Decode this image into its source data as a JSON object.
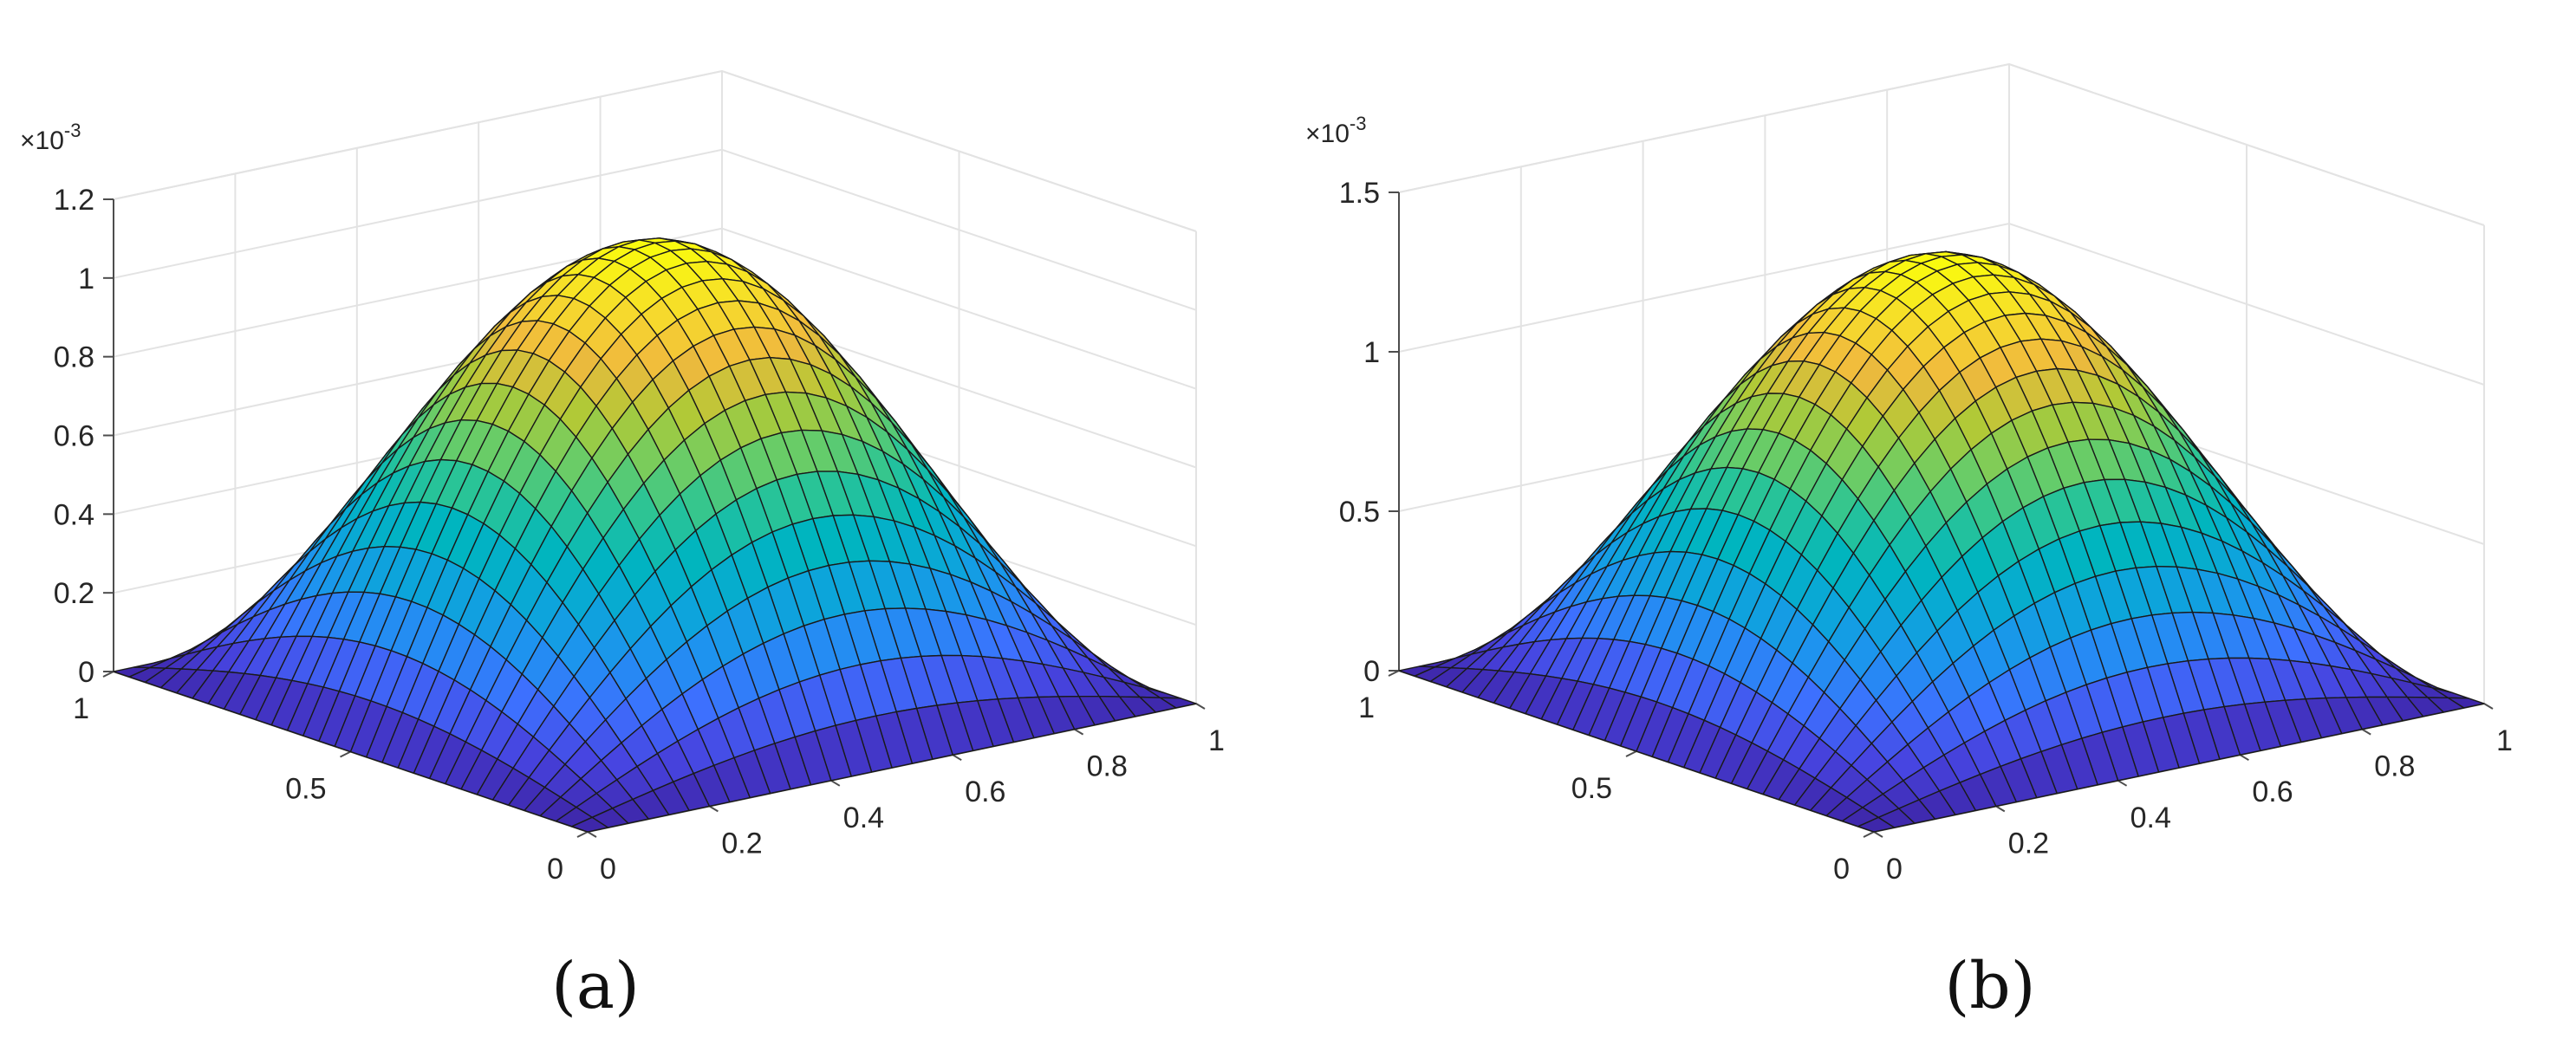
{
  "chart_data": [
    {
      "type": "surface",
      "panel_label": "(a)",
      "title": "",
      "xlabel": "",
      "ylabel": "",
      "zlabel": "",
      "xlim": [
        0,
        1
      ],
      "ylim": [
        0,
        1
      ],
      "zlim": [
        0,
        0.0012
      ],
      "x_ticks": [
        "0",
        "0.2",
        "0.4",
        "0.6",
        "0.8",
        "1"
      ],
      "y_ticks": [
        "0",
        "0.5",
        "1"
      ],
      "z_ticks": [
        "0",
        "0.2",
        "0.4",
        "0.6",
        "0.8",
        "1",
        "1.2"
      ],
      "z_tick_values": [
        0,
        0.0002,
        0.0004,
        0.0006,
        0.0008,
        0.001,
        0.0012
      ],
      "z_exponent_label": "×10-3",
      "function": "z = peak · sin(πx) · sin(πy)",
      "peak_z": 0.00113,
      "grid": true,
      "colormap": "parula"
    },
    {
      "type": "surface",
      "panel_label": "(b)",
      "title": "",
      "xlabel": "",
      "ylabel": "",
      "zlabel": "",
      "xlim": [
        0,
        1
      ],
      "ylim": [
        0,
        1
      ],
      "zlim": [
        0,
        0.0015
      ],
      "x_ticks": [
        "0",
        "0.2",
        "0.4",
        "0.6",
        "0.8",
        "1"
      ],
      "y_ticks": [
        "0",
        "0.5",
        "1"
      ],
      "z_ticks": [
        "0",
        "0.5",
        "1",
        "1.5"
      ],
      "z_tick_values": [
        0,
        0.0005,
        0.001,
        0.0015
      ],
      "z_exponent_label": "×10-3",
      "function": "z = peak · sin(πx) · sin(πy)",
      "peak_z": 0.00135,
      "grid": true,
      "colormap": "parula"
    }
  ],
  "colors": {
    "parula": [
      "#3e26a8",
      "#4744e0",
      "#3d70fe",
      "#1f92f0",
      "#0ba6d9",
      "#00b5bf",
      "#2ac496",
      "#6fcd63",
      "#b2c936",
      "#f0b93e",
      "#f6dc2b",
      "#f9fb0e"
    ],
    "grid": "#e3e3e3",
    "axis": "#4d4d4d",
    "mesh": "#1a1a1a"
  }
}
